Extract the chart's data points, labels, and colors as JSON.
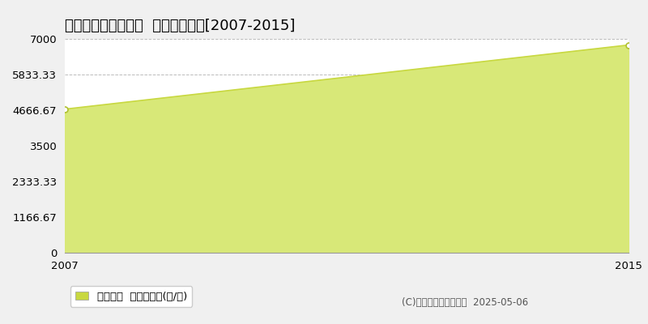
{
  "title": "国頭郡伊江村東江上  林地価格推移[2007-2015]",
  "years": [
    2007,
    2015
  ],
  "values": [
    4700,
    6800
  ],
  "ylim": [
    0,
    7000
  ],
  "yticks": [
    0,
    1166.67,
    2333.33,
    3500,
    4666.67,
    5833.33,
    7000
  ],
  "ytick_labels": [
    "0",
    "1166.67",
    "2333.33",
    "3500",
    "4666.67",
    "5833.33",
    "7000"
  ],
  "xlim": [
    2007,
    2015
  ],
  "xticks": [
    2007,
    2015
  ],
  "line_color": "#c8d840",
  "fill_color": "#d8e878",
  "marker_facecolor": "#ffffff",
  "marker_edgecolor": "#b0c030",
  "grid_color": "#aaaaaa",
  "plot_bg_color": "#ffffff",
  "outer_bg_color": "#f0f0f0",
  "legend_label": "林地価格  平均坪単価(円/坪)",
  "copyright_text": "(C)土地価格ドットコム  2025-05-06",
  "title_fontsize": 13,
  "tick_fontsize": 9.5,
  "legend_fontsize": 9.5,
  "copyright_fontsize": 8.5
}
